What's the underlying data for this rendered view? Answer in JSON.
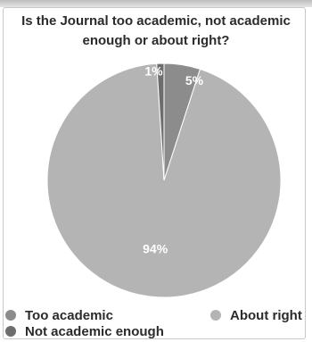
{
  "chart_data": {
    "type": "pie",
    "title": "Is the Journal too academic, not academic enough or about right?",
    "slices": [
      {
        "label": "Too academic",
        "value": 5,
        "display": "5%",
        "color": "#8c8c8c"
      },
      {
        "label": "Not academic enough",
        "value": 1,
        "display": "1%",
        "color": "#6d6d6d"
      },
      {
        "label": "About right",
        "value": 94,
        "display": "94%",
        "color": "#b4b4b4"
      }
    ],
    "legend_position": "bottom"
  }
}
